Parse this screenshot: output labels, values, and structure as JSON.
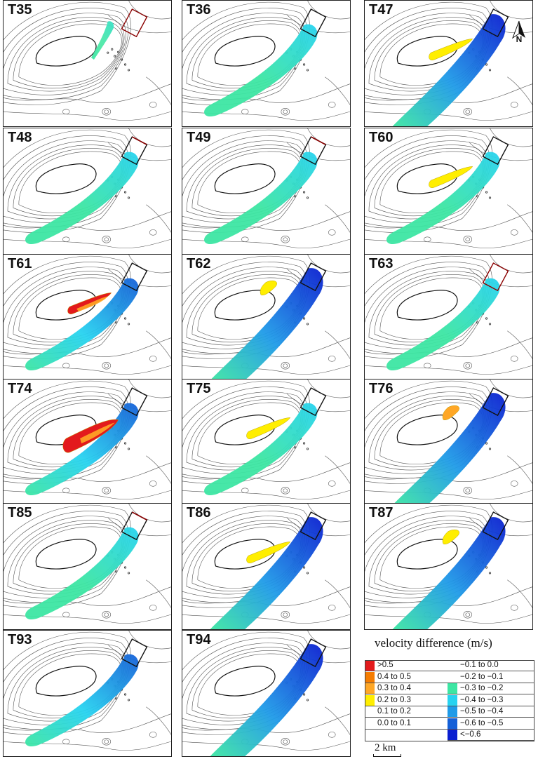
{
  "panels": [
    {
      "label": "T35",
      "intensity": "weak-cyan",
      "side": "none",
      "box": "red"
    },
    {
      "label": "T36",
      "intensity": "cyan",
      "side": "none",
      "box": "black"
    },
    {
      "label": "T47",
      "intensity": "blue-strong",
      "side": "yellow",
      "box": "black",
      "north": true
    },
    {
      "label": "T48",
      "intensity": "cyan",
      "side": "none",
      "box": "mixed"
    },
    {
      "label": "T49",
      "intensity": "cyan",
      "side": "none",
      "box": "mixed"
    },
    {
      "label": "T60",
      "intensity": "cyan",
      "side": "yellow",
      "box": "black"
    },
    {
      "label": "T61",
      "intensity": "blue",
      "side": "red",
      "box": "black"
    },
    {
      "label": "T62",
      "intensity": "blue-strong",
      "side": "yellow-small",
      "box": "black"
    },
    {
      "label": "T63",
      "intensity": "cyan",
      "side": "none",
      "box": "red"
    },
    {
      "label": "T74",
      "intensity": "blue",
      "side": "red-large",
      "box": "black"
    },
    {
      "label": "T75",
      "intensity": "cyan",
      "side": "yellow",
      "box": "black"
    },
    {
      "label": "T76",
      "intensity": "blue-strong",
      "side": "orange-small",
      "box": "black"
    },
    {
      "label": "T85",
      "intensity": "cyan",
      "side": "none",
      "box": "mixed"
    },
    {
      "label": "T86",
      "intensity": "blue-strong",
      "side": "yellow",
      "box": "black"
    },
    {
      "label": "T87",
      "intensity": "blue-strong",
      "side": "yellow-small",
      "box": "black"
    },
    {
      "label": "T93",
      "intensity": "blue",
      "side": "none",
      "box": "black"
    },
    {
      "label": "T94",
      "intensity": "blue-strong",
      "side": "none",
      "box": "black"
    }
  ],
  "north_label": "N",
  "legend": {
    "title": "velocity difference (m/s)",
    "positive": [
      {
        "label": ">0.5",
        "color": "#e31a1c"
      },
      {
        "label": "0.4 to 0.5",
        "color": "#f57c00"
      },
      {
        "label": "0.3 to 0.4",
        "color": "#ffa726"
      },
      {
        "label": "0.2 to 0.3",
        "color": "#ffee00"
      },
      {
        "label": "0.1 to 0.2",
        "color": "#ffffff"
      },
      {
        "label": "0.0 to 0.1",
        "color": "#ffffff"
      }
    ],
    "negative": [
      {
        "label": "−0.1 to 0.0",
        "color": "#ffffff"
      },
      {
        "label": "−0.2 to −0.1",
        "color": "#ffffff"
      },
      {
        "label": "−0.3 to −0.2",
        "color": "#3de6a3"
      },
      {
        "label": "−0.4 to −0.3",
        "color": "#27d3f0"
      },
      {
        "label": "−0.5 to −0.4",
        "color": "#1f9be8"
      },
      {
        "label": "−0.6 to −0.5",
        "color": "#1560d8"
      },
      {
        "label": "<−0.6",
        "color": "#0a1fd0"
      }
    ]
  },
  "scale": {
    "label": "2 km"
  }
}
